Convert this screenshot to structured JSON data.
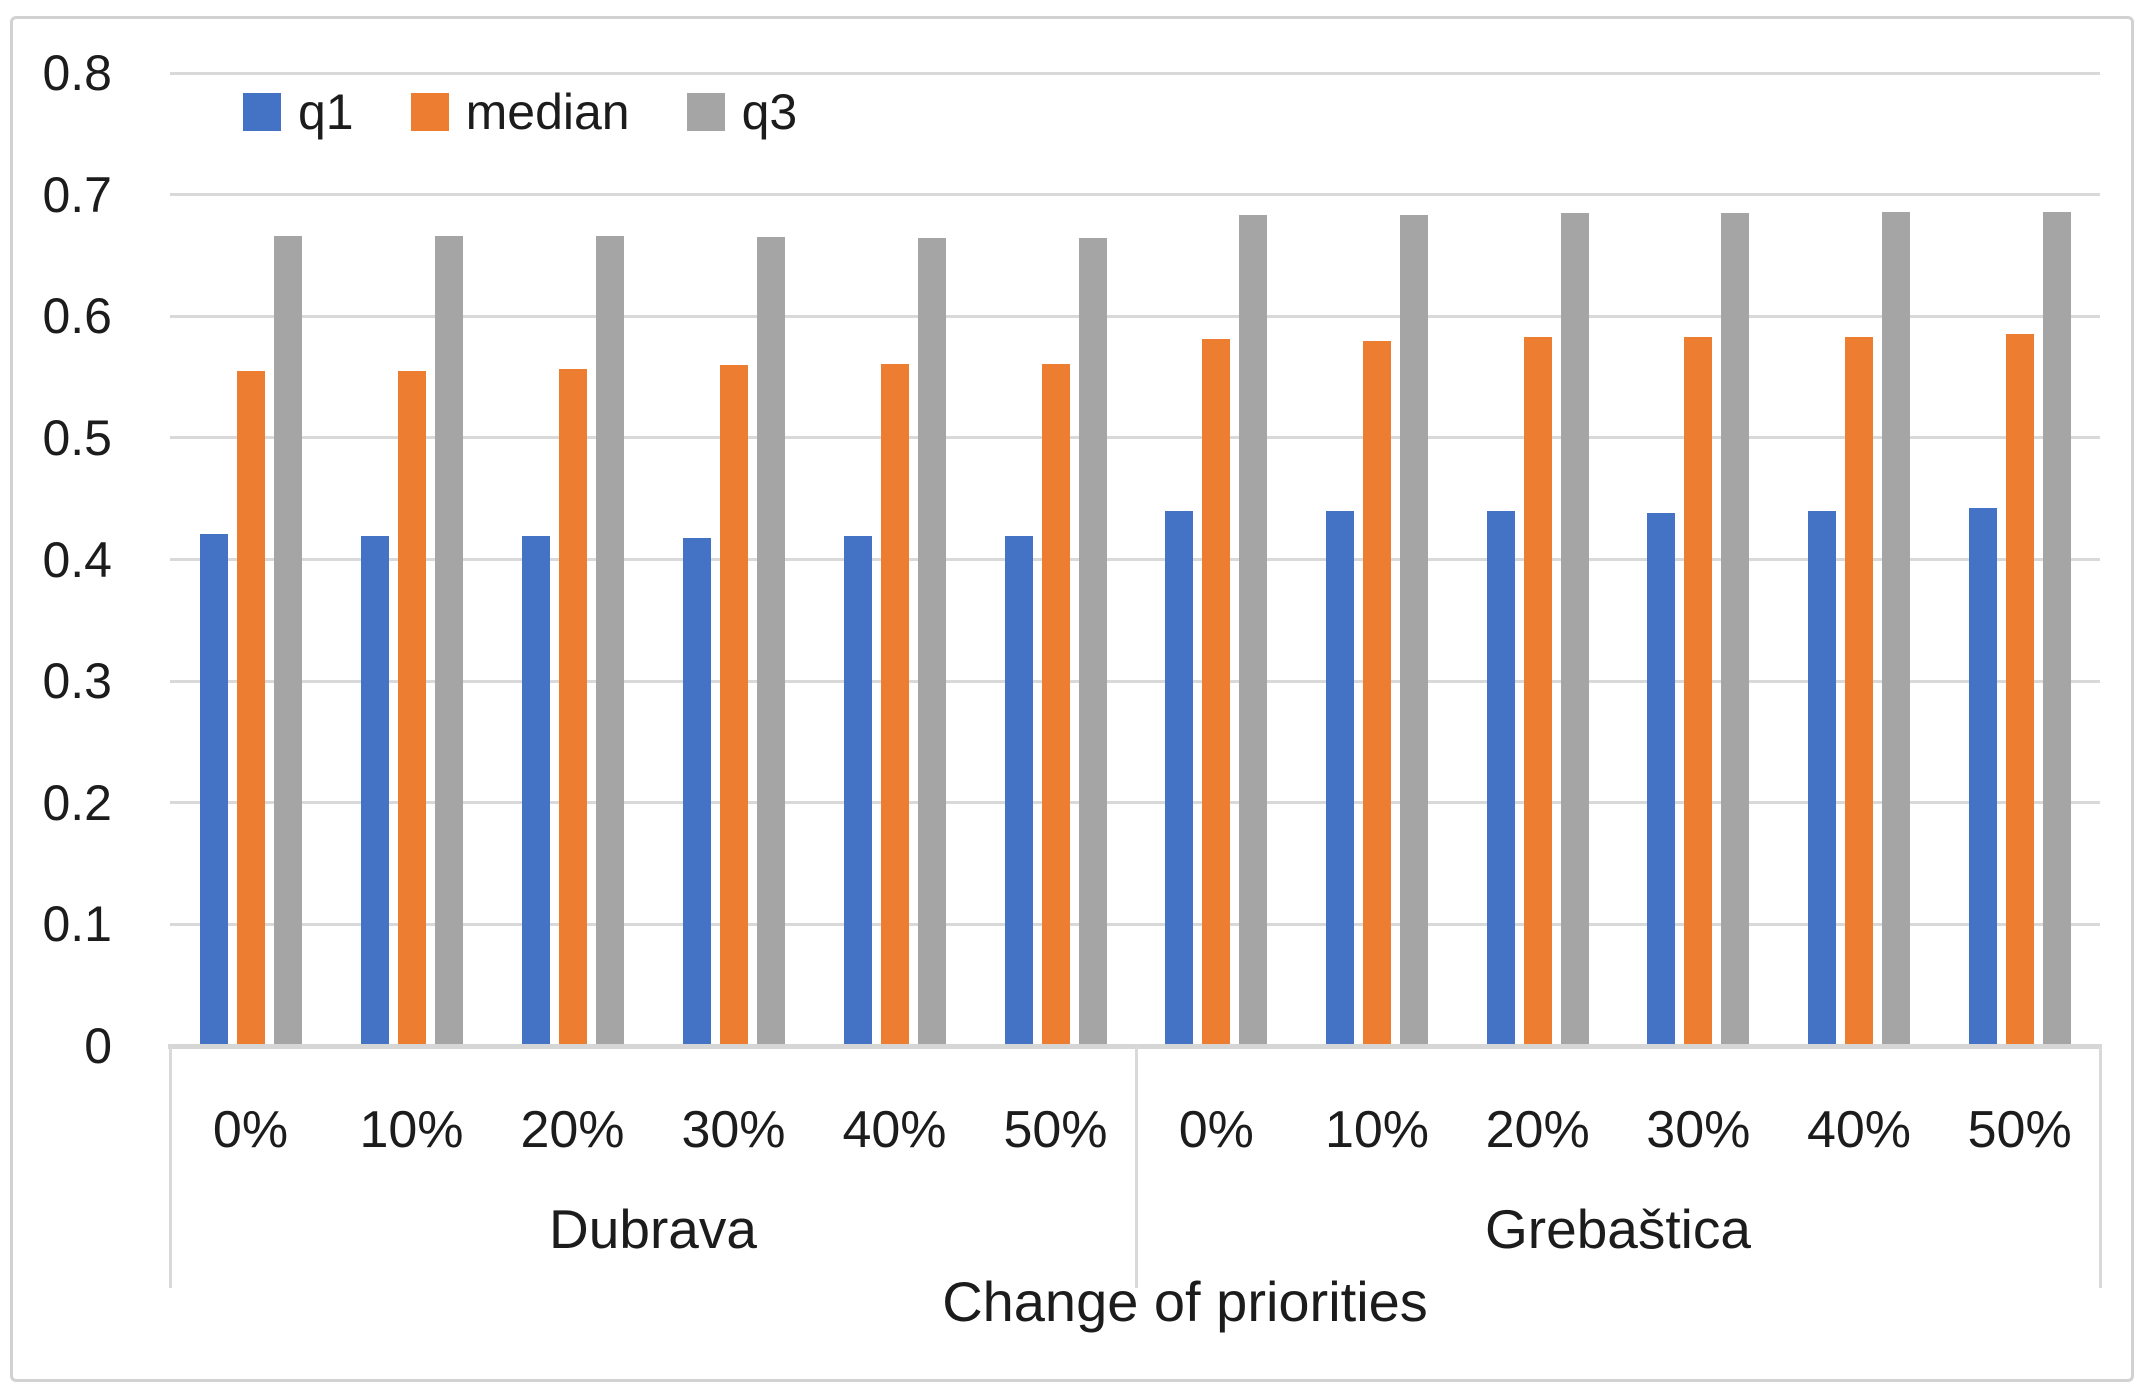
{
  "chart_data": {
    "type": "bar",
    "title": "",
    "xlabel": "Change of priorities",
    "ylabel": "",
    "ylim": [
      0,
      0.8
    ],
    "ytick_step": 0.1,
    "ytick_labels": [
      "0",
      "0.1",
      "0.2",
      "0.3",
      "0.4",
      "0.5",
      "0.6",
      "0.7",
      "0.8"
    ],
    "grid": true,
    "legend_position": "top-left-inside",
    "categories": [
      "0%",
      "10%",
      "20%",
      "30%",
      "40%",
      "50%"
    ],
    "groups": [
      {
        "label": "Dubrava"
      },
      {
        "label": "Grebaštica"
      }
    ],
    "series": [
      {
        "name": "q1",
        "color": "#4472C4",
        "values": [
          0.421,
          0.419,
          0.419,
          0.418,
          0.419,
          0.419,
          0.44,
          0.44,
          0.44,
          0.438,
          0.44,
          0.442
        ]
      },
      {
        "name": "median",
        "color": "#ED7D31",
        "values": [
          0.555,
          0.555,
          0.557,
          0.56,
          0.561,
          0.561,
          0.581,
          0.58,
          0.583,
          0.583,
          0.583,
          0.585
        ]
      },
      {
        "name": "q3",
        "color": "#A5A5A5",
        "values": [
          0.666,
          0.666,
          0.666,
          0.665,
          0.664,
          0.664,
          0.683,
          0.683,
          0.685,
          0.685,
          0.686,
          0.686
        ]
      }
    ],
    "colors": {
      "gridline": "#D9D9D9",
      "text": "#1c1c1c",
      "border": "#D2D2D2"
    }
  }
}
